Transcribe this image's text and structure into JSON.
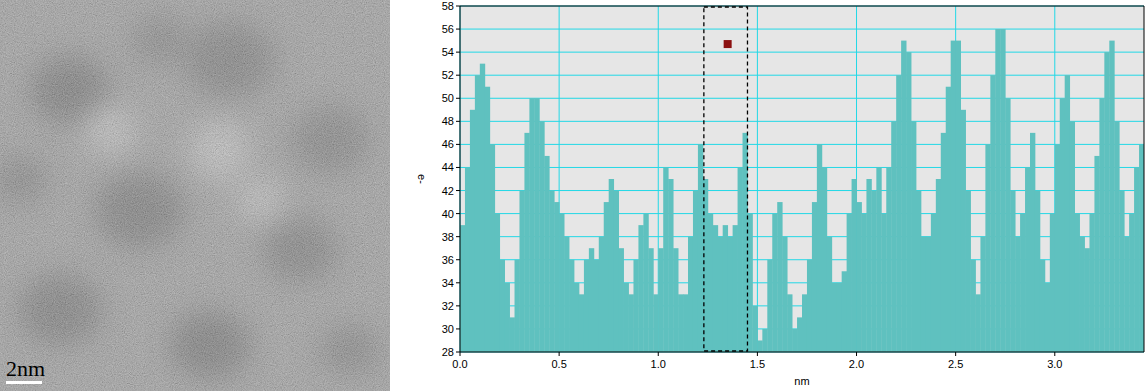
{
  "image": {
    "scale_label": "2nm"
  },
  "chart_data": {
    "type": "bar",
    "xlabel": "nm",
    "ylabel": "e-",
    "color": "#5fc1bf",
    "grid": true,
    "xlim": [
      0,
      3.45
    ],
    "ylim": [
      28,
      58
    ],
    "xticks": [
      {
        "value": 0,
        "label": "0.0"
      },
      {
        "value": 0.5,
        "label": "0.5"
      },
      {
        "value": 1,
        "label": "1.0"
      },
      {
        "value": 1.5,
        "label": "1.5"
      },
      {
        "value": 2,
        "label": "2.0"
      },
      {
        "value": 2.5,
        "label": "2.5"
      },
      {
        "value": 3,
        "label": "3.0"
      }
    ],
    "yticks": [
      28,
      30,
      32,
      34,
      36,
      38,
      40,
      42,
      44,
      46,
      48,
      50,
      52,
      54,
      56,
      58
    ],
    "selection": [
      1.23,
      1.45
    ],
    "cursor": {
      "x": 1.35,
      "y": 54.7
    },
    "x": [
      0,
      0.025,
      0.05,
      0.075,
      0.1,
      0.125,
      0.15,
      0.175,
      0.2,
      0.225,
      0.25,
      0.275,
      0.3,
      0.325,
      0.35,
      0.375,
      0.4,
      0.425,
      0.45,
      0.475,
      0.5,
      0.525,
      0.55,
      0.575,
      0.6,
      0.625,
      0.65,
      0.675,
      0.7,
      0.725,
      0.75,
      0.775,
      0.8,
      0.825,
      0.85,
      0.875,
      0.9,
      0.925,
      0.95,
      0.975,
      1,
      1.025,
      1.05,
      1.075,
      1.1,
      1.125,
      1.15,
      1.175,
      1.2,
      1.225,
      1.25,
      1.275,
      1.3,
      1.325,
      1.35,
      1.375,
      1.4,
      1.425,
      1.45,
      1.475,
      1.5,
      1.525,
      1.55,
      1.575,
      1.6,
      1.625,
      1.65,
      1.675,
      1.7,
      1.725,
      1.75,
      1.775,
      1.8,
      1.825,
      1.85,
      1.875,
      1.9,
      1.925,
      1.95,
      1.975,
      2,
      2.025,
      2.05,
      2.075,
      2.1,
      2.125,
      2.15,
      2.175,
      2.2,
      2.225,
      2.25,
      2.275,
      2.3,
      2.325,
      2.35,
      2.375,
      2.4,
      2.425,
      2.45,
      2.475,
      2.5,
      2.525,
      2.55,
      2.575,
      2.6,
      2.625,
      2.65,
      2.675,
      2.7,
      2.725,
      2.75,
      2.775,
      2.8,
      2.825,
      2.85,
      2.875,
      2.9,
      2.925,
      2.95,
      2.975,
      3,
      3.025,
      3.05,
      3.075,
      3.1,
      3.125,
      3.15,
      3.175,
      3.2,
      3.225,
      3.25,
      3.275,
      3.3,
      3.325,
      3.35,
      3.375,
      3.4,
      3.425
    ],
    "values": [
      39,
      44,
      49,
      52,
      53,
      51,
      46,
      40,
      36,
      34,
      31,
      36,
      42,
      47,
      50,
      50,
      48,
      45,
      42,
      41,
      40,
      38,
      36,
      34,
      33,
      36,
      37,
      36,
      38,
      41,
      43,
      42,
      37,
      34,
      33,
      36,
      39,
      40,
      37,
      33,
      37,
      44,
      43,
      37,
      33,
      33,
      38,
      42,
      46,
      43,
      40,
      39,
      38,
      39,
      38,
      39,
      44,
      47,
      40,
      32,
      29,
      30,
      36,
      40,
      41,
      38,
      33,
      30,
      31,
      33,
      36,
      41,
      46,
      44,
      38,
      34,
      34,
      35,
      40,
      43,
      41,
      40,
      43,
      42,
      44,
      40,
      44,
      48,
      52,
      55,
      54,
      48,
      42,
      38,
      38,
      40,
      43,
      47,
      51,
      55,
      55,
      49,
      42,
      36,
      33,
      38,
      46,
      52,
      56,
      56,
      50,
      42,
      38,
      40,
      44,
      47,
      42,
      36,
      34,
      40,
      46,
      50,
      52,
      48,
      40,
      38,
      37,
      40,
      45,
      50,
      54,
      55,
      48,
      42,
      38,
      40,
      44,
      46
    ]
  }
}
